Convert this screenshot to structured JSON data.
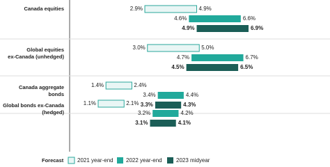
{
  "chart_data": {
    "type": "range-bar",
    "categories": [
      [
        "Canada equities"
      ],
      [
        "Global equities",
        "ex-Canada (unhedged)"
      ],
      [
        "Canada aggregate",
        "bonds"
      ],
      [
        "Global bonds ex-Canada",
        "(hedged)"
      ]
    ],
    "legend_title": "Forecast",
    "series": [
      {
        "name": "2021 year-end",
        "color": "#e9f6f5",
        "stroke": "#2aa79b",
        "values": [
          [
            2.9,
            4.9
          ],
          [
            3.0,
            5.0
          ],
          [
            1.4,
            2.4
          ],
          [
            1.1,
            2.1
          ]
        ],
        "value_labels": [
          [
            "2.9%",
            "4.9%"
          ],
          [
            "3.0%",
            "5.0%"
          ],
          [
            "1.4%",
            "2.4%"
          ],
          [
            "1.1%",
            "2.1%"
          ]
        ]
      },
      {
        "name": "2022 year-end",
        "color": "#21a99b",
        "values": [
          [
            4.6,
            6.6
          ],
          [
            4.7,
            6.7
          ],
          [
            3.4,
            4.4
          ],
          [
            3.2,
            4.2
          ]
        ],
        "value_labels": [
          [
            "4.6%",
            "6.6%"
          ],
          [
            "4.7%",
            "6.7%"
          ],
          [
            "3.4%",
            "4.4%"
          ],
          [
            "3.2%",
            "4.2%"
          ]
        ]
      },
      {
        "name": "2023 midyear",
        "color": "#1b5e57",
        "values": [
          [
            4.9,
            6.9
          ],
          [
            4.5,
            6.5
          ],
          [
            3.3,
            4.3
          ],
          [
            3.1,
            4.1
          ]
        ],
        "value_labels": [
          [
            "4.9%",
            "6.9%"
          ],
          [
            "4.5%",
            "6.5%"
          ],
          [
            "3.3%",
            "4.3%"
          ],
          [
            "3.1%",
            "4.1%"
          ]
        ]
      }
    ]
  }
}
